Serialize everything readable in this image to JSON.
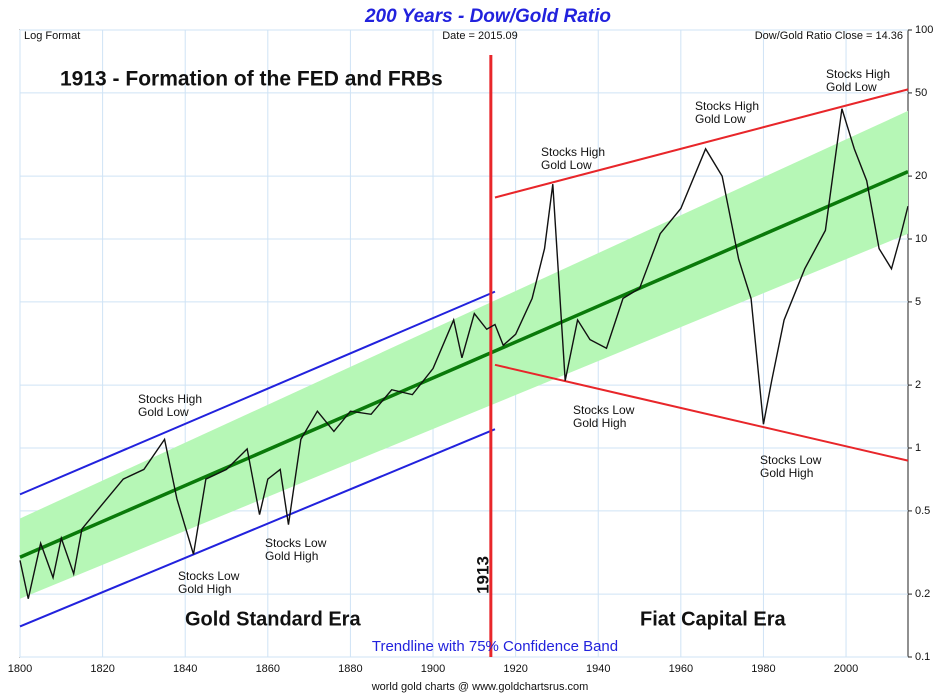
{
  "chart_data": {
    "type": "line",
    "title": "200 Years - Dow/Gold Ratio",
    "header_left": "Log Format",
    "header_center": "Date = 2015.09",
    "header_right": "Dow/Gold Ratio Close = 14.36",
    "headline": "1913 - Formation of the FED and FRBs",
    "era_left": "Gold Standard Era",
    "era_right": "Fiat Capital Era",
    "band_caption": "Trendline with 75% Confidence Band",
    "source": "world gold charts @ www.goldchartsrus.com",
    "event_label": "1913",
    "event_line": {
      "x": 1914,
      "color": "#e8262a"
    },
    "log_scale": true,
    "grid": true,
    "xlim": [
      1800,
      2015
    ],
    "ylim": [
      0.1,
      100
    ],
    "xticks": [
      1800,
      1820,
      1840,
      1860,
      1880,
      1900,
      1920,
      1940,
      1960,
      1980,
      2000
    ],
    "yticks": [
      0.1,
      0.2,
      0.5,
      1,
      2,
      5,
      10,
      20,
      50,
      100
    ],
    "series": [
      {
        "name": "Dow/Gold Ratio",
        "color": "#111111",
        "x": [
          1800,
          1802,
          1805,
          1808,
          1810,
          1813,
          1815,
          1820,
          1825,
          1830,
          1835,
          1838,
          1842,
          1845,
          1850,
          1855,
          1858,
          1860,
          1863,
          1865,
          1868,
          1872,
          1876,
          1880,
          1885,
          1890,
          1895,
          1900,
          1905,
          1907,
          1910,
          1913,
          1915,
          1917,
          1920,
          1924,
          1927,
          1929,
          1932,
          1935,
          1938,
          1942,
          1946,
          1950,
          1955,
          1960,
          1966,
          1970,
          1974,
          1977,
          1980,
          1982,
          1985,
          1990,
          1995,
          1999,
          2002,
          2005,
          2008,
          2011,
          2013,
          2015
        ],
        "values": [
          0.29,
          0.19,
          0.35,
          0.24,
          0.37,
          0.25,
          0.41,
          0.54,
          0.71,
          0.79,
          1.1,
          0.57,
          0.31,
          0.71,
          0.79,
          0.99,
          0.48,
          0.71,
          0.79,
          0.43,
          1.1,
          1.5,
          1.2,
          1.5,
          1.45,
          1.9,
          1.8,
          2.4,
          4.1,
          2.7,
          4.4,
          3.7,
          3.9,
          3.1,
          3.5,
          5.2,
          9,
          18.3,
          2.1,
          4.1,
          3.3,
          3.0,
          5.2,
          5.8,
          10.6,
          14,
          27,
          20,
          8,
          5.2,
          1.3,
          2.1,
          4.1,
          7.2,
          11,
          42,
          27,
          19,
          9,
          7.2,
          10,
          14.36
        ]
      }
    ],
    "trend": {
      "color": "#0a7a0a",
      "x": [
        1800,
        2015
      ],
      "values": [
        0.3,
        21
      ]
    },
    "band": {
      "color": "#b6f7b6",
      "x": [
        1800,
        2015
      ],
      "upper": [
        0.46,
        41
      ],
      "lower": [
        0.19,
        10.6
      ]
    },
    "channels": [
      {
        "color": "#2222dd",
        "x": [
          1800,
          1915
        ],
        "values": [
          0.6,
          5.6
        ]
      },
      {
        "color": "#2222dd",
        "x": [
          1800,
          1915
        ],
        "values": [
          0.14,
          1.23
        ]
      },
      {
        "color": "#e8262a",
        "x": [
          1915,
          2015
        ],
        "values": [
          15.8,
          52
        ]
      },
      {
        "color": "#e8262a",
        "x": [
          1915,
          2015
        ],
        "values": [
          2.5,
          0.87
        ]
      }
    ],
    "annotations": [
      [
        "Stocks High",
        "Gold Low"
      ],
      [
        "Stocks Low",
        "Gold High"
      ],
      [
        "Stocks Low",
        "Gold High"
      ],
      [
        "Stocks High",
        "Gold Low"
      ],
      [
        "Stocks High",
        "Gold Low"
      ],
      [
        "Stocks Low",
        "Gold High"
      ],
      [
        "Stocks High",
        "Gold Low"
      ],
      [
        "Stocks Low",
        "Gold High"
      ]
    ]
  }
}
